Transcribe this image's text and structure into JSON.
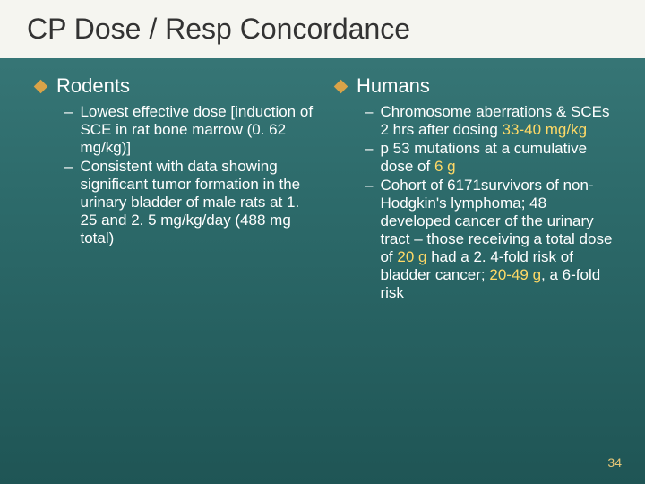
{
  "slide": {
    "title": "CP Dose / Resp Concordance",
    "number": "34",
    "background_gradient": [
      "#3a7a7a",
      "#2d6b6b",
      "#1f5555"
    ],
    "title_bg": "#f5f5f0",
    "title_color": "#333333",
    "title_fontsize": 32,
    "bullet_diamond_color": "#d9a348",
    "text_color": "#ffffff",
    "highlight_color": "#ffd966",
    "heading_fontsize": 22,
    "body_fontsize": 17
  },
  "left": {
    "heading": "Rodents",
    "items": [
      {
        "text": "Lowest effective dose [induction of SCE in rat bone marrow (0. 62 mg/kg)]"
      },
      {
        "text": "Consistent with data showing significant tumor formation in the urinary bladder of male rats at 1. 25 and 2. 5 mg/kg/day (488 mg total)"
      }
    ]
  },
  "right": {
    "heading": "Humans",
    "items": [
      {
        "pre": "Chromosome aberrations & SCEs 2 hrs after dosing ",
        "hl": "33-40 mg/kg"
      },
      {
        "pre": "p 53 mutations at a cumulative dose of ",
        "hl": "6 g"
      },
      {
        "pre": "Cohort of 6171survivors of non-Hodgkin's lymphoma; 48 developed cancer of the urinary tract – those receiving a total dose of ",
        "hl": "20 g",
        "mid": " had a 2. 4-fold  risk of bladder cancer; ",
        "hl2": "20-49 g",
        "post": ", a 6-fold  risk"
      }
    ]
  }
}
